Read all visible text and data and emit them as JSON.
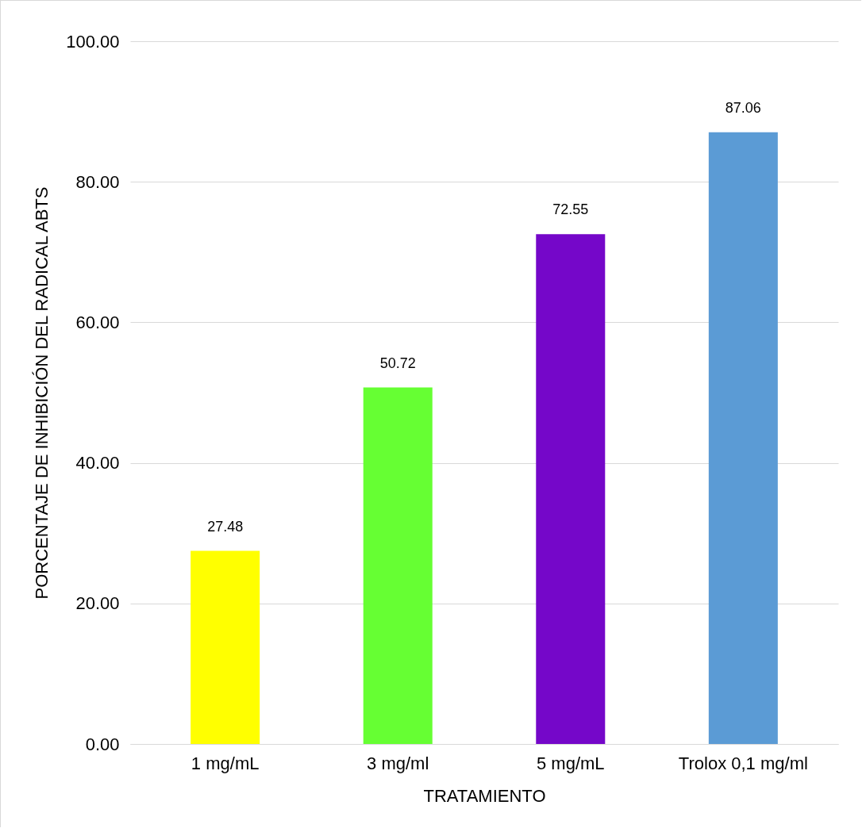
{
  "chart_data": {
    "type": "bar",
    "xlabel": "TRATAMIENTO",
    "ylabel": "PORCENTAJE DE INHIBICIÓN DEL RADICAL ABTS",
    "categories": [
      "1 mg/mL",
      "3 mg/ml",
      "5 mg/mL",
      "Trolox 0,1 mg/ml"
    ],
    "values": [
      27.48,
      50.72,
      72.55,
      87.06
    ],
    "colors": [
      "#ffff00",
      "#66ff33",
      "#7507c9",
      "#5b9bd5"
    ],
    "ylim": [
      0,
      100
    ],
    "yticks": [
      {
        "value": 0,
        "label": "0.00"
      },
      {
        "value": 20,
        "label": "20.00"
      },
      {
        "value": 40,
        "label": "40.00"
      },
      {
        "value": 60,
        "label": "60.00"
      },
      {
        "value": 80,
        "label": "80.00"
      },
      {
        "value": 100,
        "label": "100.00"
      }
    ],
    "grid": "y",
    "data_labels": true,
    "legend": false
  }
}
